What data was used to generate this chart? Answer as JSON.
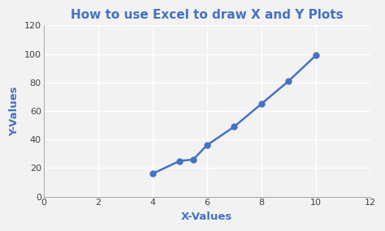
{
  "title": "How to use Excel to draw X and Y Plots",
  "xlabel": "X-Values",
  "ylabel": "Y-Values",
  "x_values": [
    4,
    5,
    5.5,
    6,
    7,
    8,
    9,
    10
  ],
  "y_values": [
    16,
    25,
    26,
    36,
    49,
    65,
    81,
    99
  ],
  "xlim": [
    0,
    12
  ],
  "ylim": [
    0,
    120
  ],
  "xticks": [
    0,
    2,
    4,
    6,
    8,
    10,
    12
  ],
  "yticks": [
    0,
    20,
    40,
    60,
    80,
    100,
    120
  ],
  "line_color": "#4472c4",
  "marker_color": "#4472c4",
  "title_color": "#4472c4",
  "axis_label_color": "#4472c4",
  "background_color": "#f2f2f2",
  "plot_bg_color": "#f2f2f2",
  "grid_color": "#ffffff",
  "title_fontsize": 11,
  "label_fontsize": 9.5,
  "tick_fontsize": 8,
  "line_width": 1.8,
  "marker_size": 5
}
